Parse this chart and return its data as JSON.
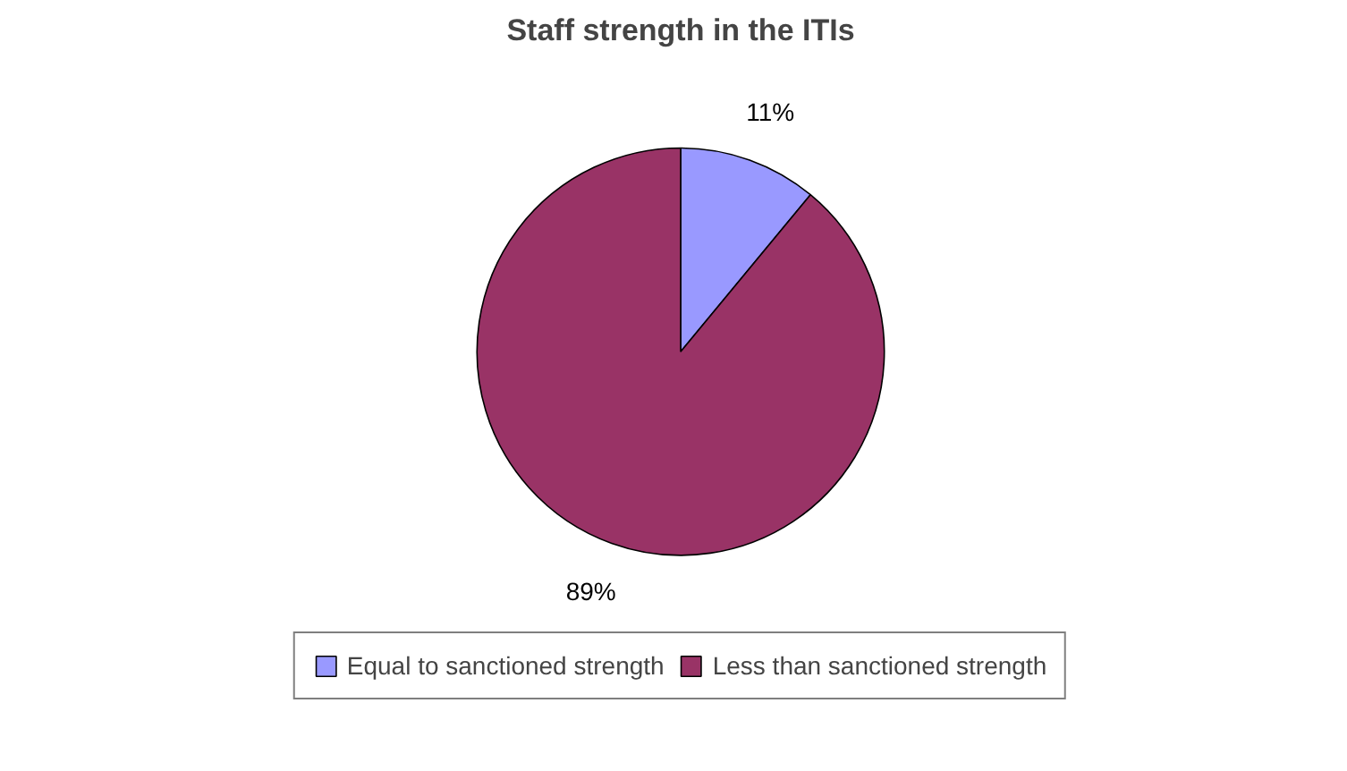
{
  "chart_data": {
    "type": "pie",
    "title": "Staff strength in the ITIs",
    "categories": [
      "Equal to sanctioned strength",
      "Less than sanctioned strength"
    ],
    "values": [
      11,
      89
    ],
    "colors": [
      "#9999ff",
      "#993366"
    ],
    "value_labels": [
      "11%",
      "89%"
    ],
    "legend": "bottom"
  }
}
